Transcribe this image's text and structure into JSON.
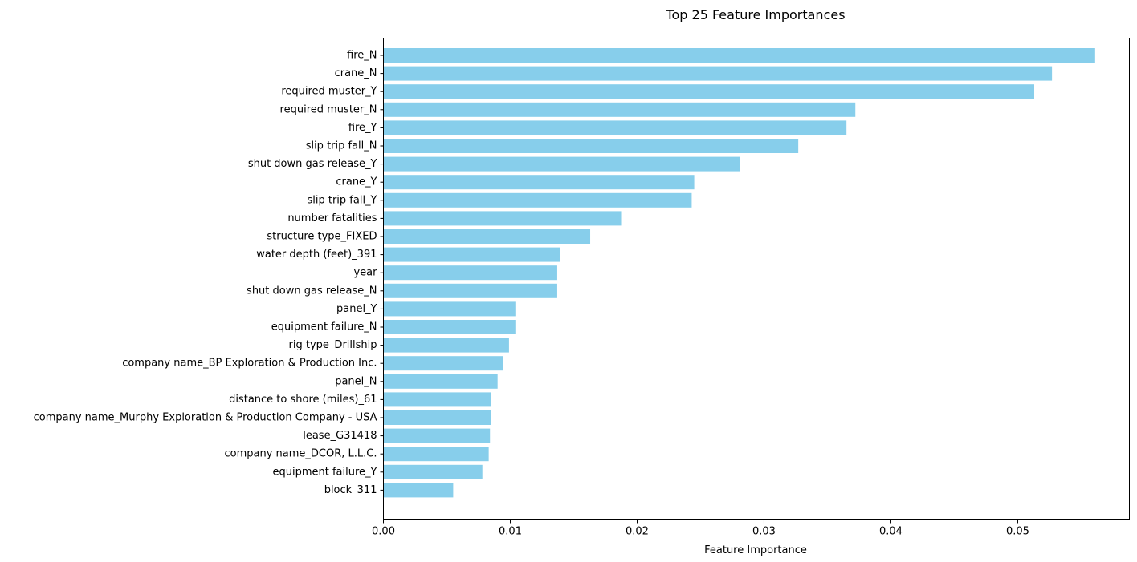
{
  "chart_data": {
    "type": "bar",
    "orientation": "horizontal",
    "title": "Top 25 Feature Importances",
    "xlabel": "Feature Importance",
    "ylabel": "",
    "xlim": [
      0,
      0.0588
    ],
    "xticks": [
      "0.00",
      "0.01",
      "0.02",
      "0.03",
      "0.04",
      "0.05"
    ],
    "grid": false,
    "bar_color": "#87CEEB",
    "categories": [
      "fire_N",
      "crane_N",
      "required muster_Y",
      "required muster_N",
      "fire_Y",
      "slip trip fall_N",
      "shut down gas release_Y",
      "crane_Y",
      "slip trip fall_Y",
      "number fatalities",
      "structure type_FIXED",
      "water depth (feet)_391",
      "year",
      "shut down gas release_N",
      "panel_Y",
      "equipment failure_N",
      "rig type_Drillship",
      "company name_BP Exploration & Production Inc.",
      "panel_N",
      "distance to shore (miles)_61",
      "company name_Murphy Exploration & Production Company - USA",
      "lease_G31418",
      "company name_DCOR, L.L.C.",
      "equipment failure_Y",
      "block_311"
    ],
    "values": [
      0.0561,
      0.0527,
      0.0513,
      0.0372,
      0.0365,
      0.0327,
      0.0281,
      0.0245,
      0.0243,
      0.0188,
      0.0163,
      0.0139,
      0.0137,
      0.0137,
      0.0104,
      0.0104,
      0.0099,
      0.0094,
      0.009,
      0.0085,
      0.0085,
      0.0084,
      0.0083,
      0.0078,
      0.0055
    ]
  }
}
